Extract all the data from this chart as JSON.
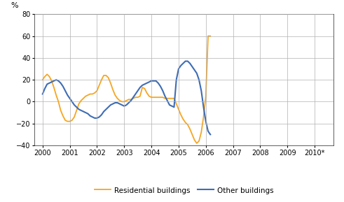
{
  "title_ylabel": "%",
  "ylim": [
    -40,
    80
  ],
  "yticks": [
    -40,
    -20,
    0,
    20,
    40,
    60,
    80
  ],
  "xtick_labels": [
    "2000",
    "2001",
    "2002",
    "2003",
    "2004",
    "2005",
    "2006",
    "2007",
    "2008",
    "2009",
    "2010*"
  ],
  "xtick_positions": [
    0,
    12,
    24,
    36,
    48,
    60,
    72,
    84,
    96,
    108,
    120
  ],
  "residential_color": "#F5A623",
  "other_color": "#3E6DB5",
  "residential_label": "Residential buildings",
  "other_label": "Other buildings",
  "background_color": "#ffffff",
  "grid_color": "#b0b0b0",
  "residential_y": [
    20,
    23,
    25,
    23,
    19,
    13,
    6,
    0,
    -8,
    -13,
    -17,
    -18,
    -18,
    -17,
    -14,
    -8,
    -2,
    1,
    3,
    5,
    6,
    7,
    7,
    8,
    10,
    15,
    20,
    24,
    24,
    22,
    17,
    11,
    6,
    3,
    1,
    0,
    0,
    1,
    2,
    2,
    3,
    4,
    4,
    5,
    13,
    12,
    8,
    5,
    4,
    4,
    4,
    4,
    4,
    4,
    3,
    3,
    3,
    3,
    3,
    -2,
    -7,
    -12,
    -16,
    -19,
    -21,
    -25,
    -30,
    -35,
    -38,
    -36,
    -28,
    -14,
    5,
    60,
    60
  ],
  "other_y": [
    7,
    12,
    16,
    17,
    18,
    19,
    20,
    19,
    17,
    14,
    10,
    6,
    3,
    0,
    -3,
    -5,
    -7,
    -8,
    -9,
    -10,
    -11,
    -13,
    -14,
    -15,
    -15,
    -14,
    -12,
    -9,
    -7,
    -5,
    -3,
    -2,
    -1,
    -1,
    -2,
    -3,
    -4,
    -3,
    -1,
    1,
    4,
    7,
    10,
    13,
    15,
    16,
    17,
    18,
    19,
    19,
    19,
    17,
    14,
    10,
    5,
    1,
    -3,
    -4,
    -5,
    20,
    30,
    33,
    35,
    37,
    37,
    35,
    32,
    29,
    26,
    20,
    10,
    -5,
    -18,
    -27,
    -30
  ],
  "n_months": 75,
  "last_year_start": 120
}
